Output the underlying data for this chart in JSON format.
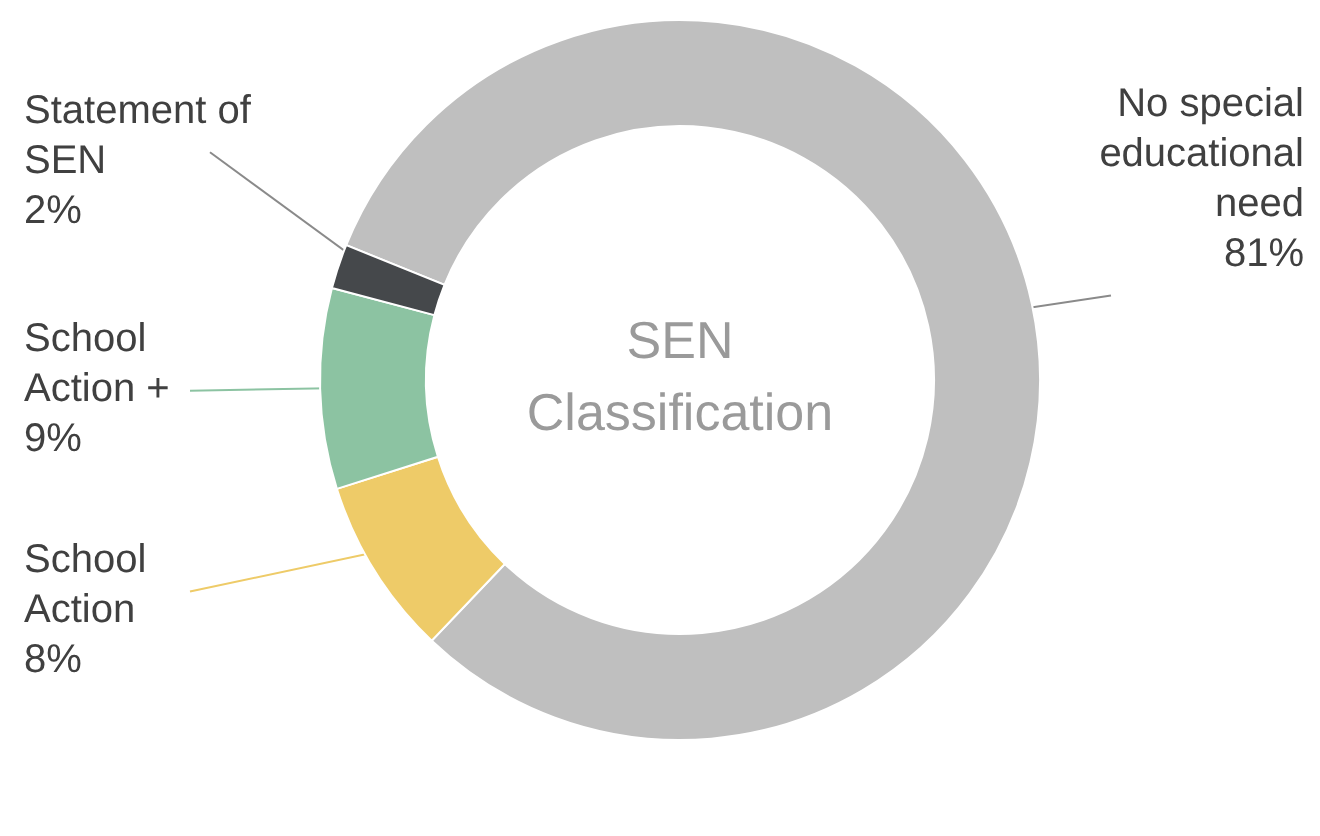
{
  "chart_data": {
    "type": "donut",
    "title": "SEN Classification",
    "categories": [
      "No special educational need",
      "School Action",
      "School Action +",
      "Statement of SEN"
    ],
    "values": [
      81,
      8,
      9,
      2
    ],
    "colors": [
      "#bfbfbf",
      "#eecb68",
      "#8cc3a2",
      "#45484b"
    ],
    "value_labels": [
      "81%",
      "8%",
      "9%",
      "2%"
    ]
  }
}
